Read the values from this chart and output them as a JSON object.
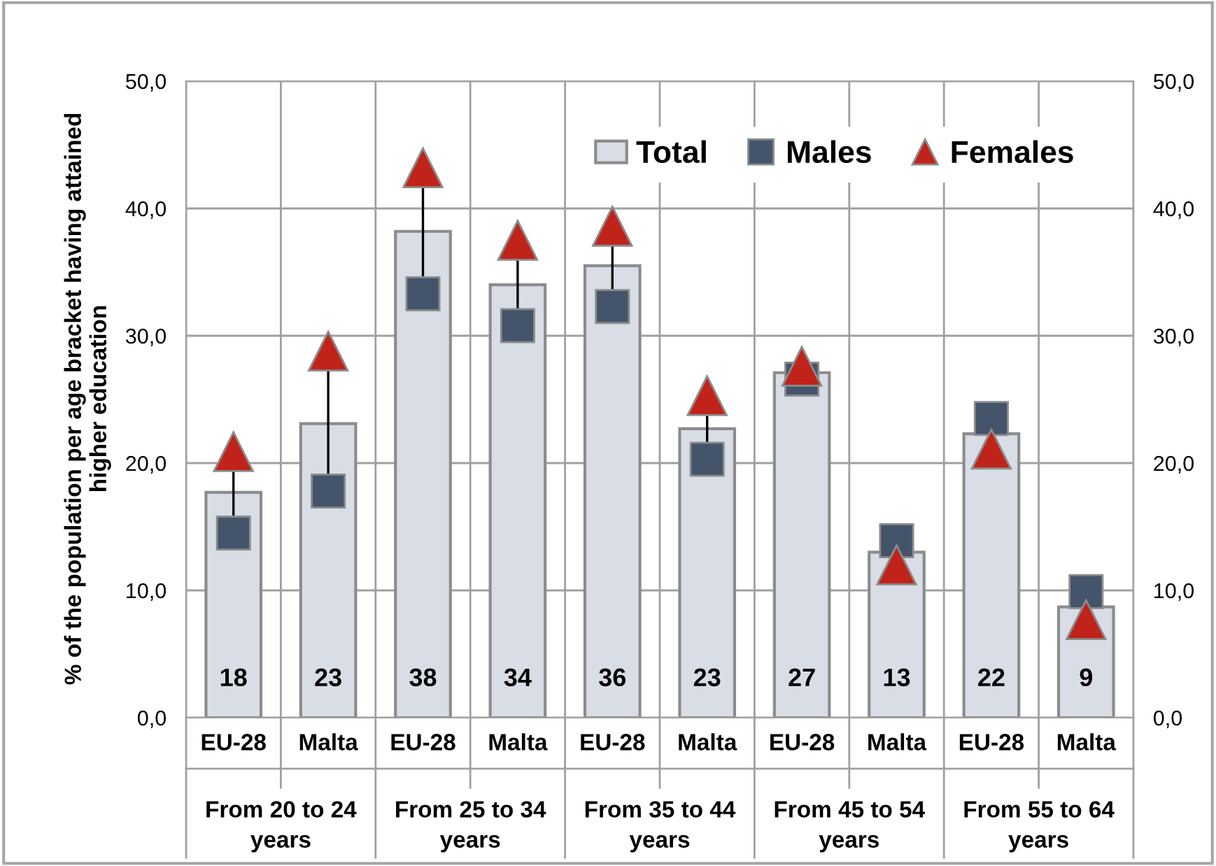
{
  "chart_data": {
    "type": "bar",
    "ylabel": "% of the population per age bracket having attained\nhigher education",
    "categories": [
      "EU-28",
      "Malta",
      "EU-28",
      "Malta",
      "EU-28",
      "Malta",
      "EU-28",
      "Malta",
      "EU-28",
      "Malta"
    ],
    "annotations": [
      "From 20 to 24\nyears",
      "From 25 to 34\nyears",
      "From 35 to 44\nyears",
      "From 45 to 54\nyears",
      "From 55 to 64\nyears"
    ],
    "series": [
      {
        "name": "Total",
        "color": "#d9dde6",
        "values": [
          17.7,
          23.1,
          38.2,
          34.0,
          35.5,
          22.7,
          27.1,
          13.0,
          22.3,
          8.7
        ],
        "value_labels": [
          "18",
          "23",
          "38",
          "34",
          "36",
          "23",
          "27",
          "13",
          "22",
          "9"
        ]
      },
      {
        "name": "Males",
        "type": "scatter",
        "marker": "square",
        "color": "#44546a",
        "values": [
          14.5,
          17.8,
          33.3,
          30.8,
          32.3,
          20.3,
          26.6,
          13.9,
          23.5,
          9.9
        ]
      },
      {
        "name": "Females",
        "type": "scatter",
        "marker": "triangle",
        "color": "#c0231a",
        "values": [
          20.9,
          28.8,
          43.2,
          37.5,
          38.6,
          25.3,
          27.6,
          12.0,
          21.1,
          7.7
        ]
      }
    ],
    "ylim": [
      0,
      50
    ],
    "yticks": [
      {
        "value": 0,
        "label": "0,0"
      },
      {
        "value": 10,
        "label": "10,0"
      },
      {
        "value": 20,
        "label": "20,0"
      },
      {
        "value": 30,
        "label": "30,0"
      },
      {
        "value": 40,
        "label": "40,0"
      },
      {
        "value": 50,
        "label": "50,0"
      }
    ],
    "y2lim": [
      0,
      50
    ],
    "y2ticks": [
      {
        "value": 0,
        "label": "0,0"
      },
      {
        "value": 10,
        "label": "10,0"
      },
      {
        "value": 20,
        "label": "20,0"
      },
      {
        "value": 30,
        "label": "30,0"
      },
      {
        "value": 40,
        "label": "40,0"
      },
      {
        "value": 50,
        "label": "50,0"
      }
    ],
    "grid": true,
    "legend": "top right"
  }
}
